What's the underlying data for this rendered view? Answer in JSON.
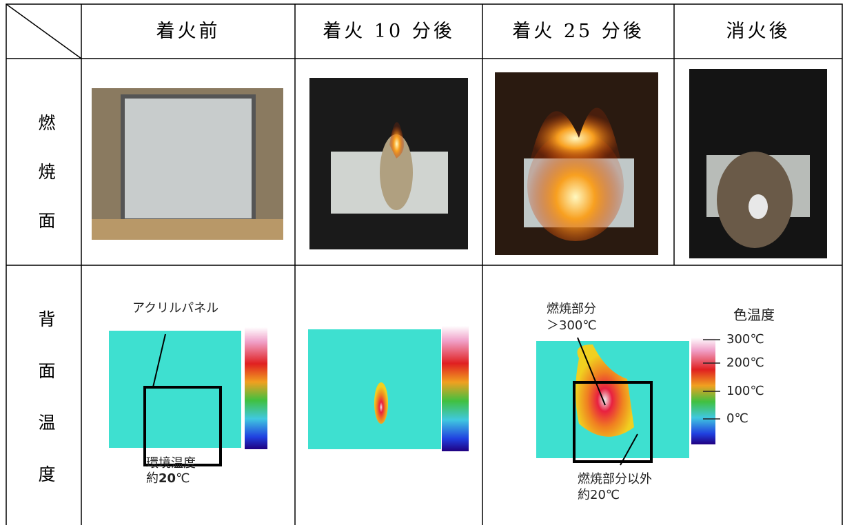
{
  "table": {
    "header": [
      "着火前",
      "着火 10 分後",
      "着火 25 分後",
      "消火後"
    ],
    "row_labels": [
      "燃焼面",
      "背面温度"
    ],
    "annotations": {
      "acrylic_panel": "アクリルパネル",
      "ambient_temp": "環境温度",
      "ambient_approx": "約",
      "ambient_value": "20",
      "ambient_unit": "℃",
      "burning_part": "燃焼部分",
      "burning_temp": "＞300℃",
      "non_burning_part": "燃焼部分以外",
      "non_burning_temp": "約20℃",
      "color_temp": "色温度",
      "scale": [
        "300℃",
        "200℃",
        "100℃",
        "0℃"
      ]
    }
  }
}
